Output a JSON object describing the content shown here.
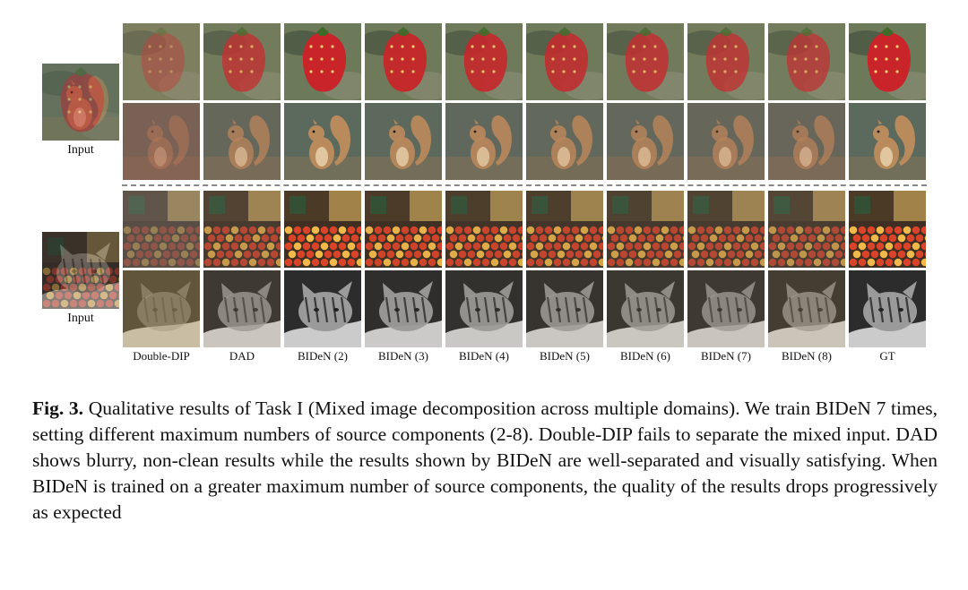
{
  "figure": {
    "input_label": "Input",
    "column_labels": [
      "Double-DIP",
      "DAD",
      "BIDeN (2)",
      "BIDeN (3)",
      "BIDeN (4)",
      "BIDeN (5)",
      "BIDeN (6)",
      "BIDeN (7)",
      "BIDeN (8)",
      "GT"
    ],
    "groups": [
      {
        "input_subject": "strawberry-squirrel-mix",
        "rows": [
          {
            "subject": "strawberry",
            "colors": {
              "bg": "#6d7a5a",
              "obj": "#c8242a",
              "accent": "#e85a50"
            }
          },
          {
            "subject": "squirrel",
            "colors": {
              "bg": "#5c6a5e",
              "obj": "#b88a5c",
              "accent": "#e0c7a0"
            }
          }
        ]
      },
      {
        "input_subject": "market-cat-mix",
        "rows": [
          {
            "subject": "fruit-market",
            "colors": {
              "bg": "#3e2f22",
              "obj": "#d9432a",
              "accent": "#f2b84a"
            }
          },
          {
            "subject": "cat",
            "colors": {
              "bg": "#2c2c2c",
              "obj": "#9a9a9a",
              "accent": "#e8e8e8"
            }
          }
        ]
      }
    ]
  },
  "caption": {
    "fig_label": "Fig. 3.",
    "text": " Qualitative results of Task I (Mixed image decomposition across multiple domains). We train BIDeN 7 times, setting different maximum numbers of source components (2-8). Double-DIP fails to separate the mixed input. DAD shows blurry, non-clean results while the results shown by BIDeN are well-separated and visually satisfying. When BIDeN is trained on a greater maximum number of source components, the quality of the results drops progressively as expected"
  }
}
